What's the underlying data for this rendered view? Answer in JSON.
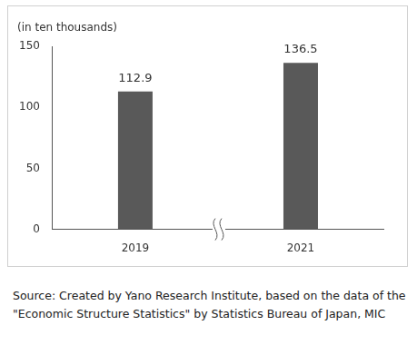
{
  "chart_data": {
    "type": "bar",
    "y_label": "(in ten thousands)",
    "categories": [
      "2019",
      "2021"
    ],
    "values": [
      112.9,
      136.5
    ],
    "color": "#595959",
    "ylim": [
      0,
      150
    ],
    "yticks": [
      0,
      50,
      100,
      150
    ],
    "grid": false,
    "data_labels": true,
    "source": "Source: Created by Yano Research Institute, based on the data of the \"Economic Structure Statistics\" by Statistics Bureau of Japan, MIC"
  }
}
